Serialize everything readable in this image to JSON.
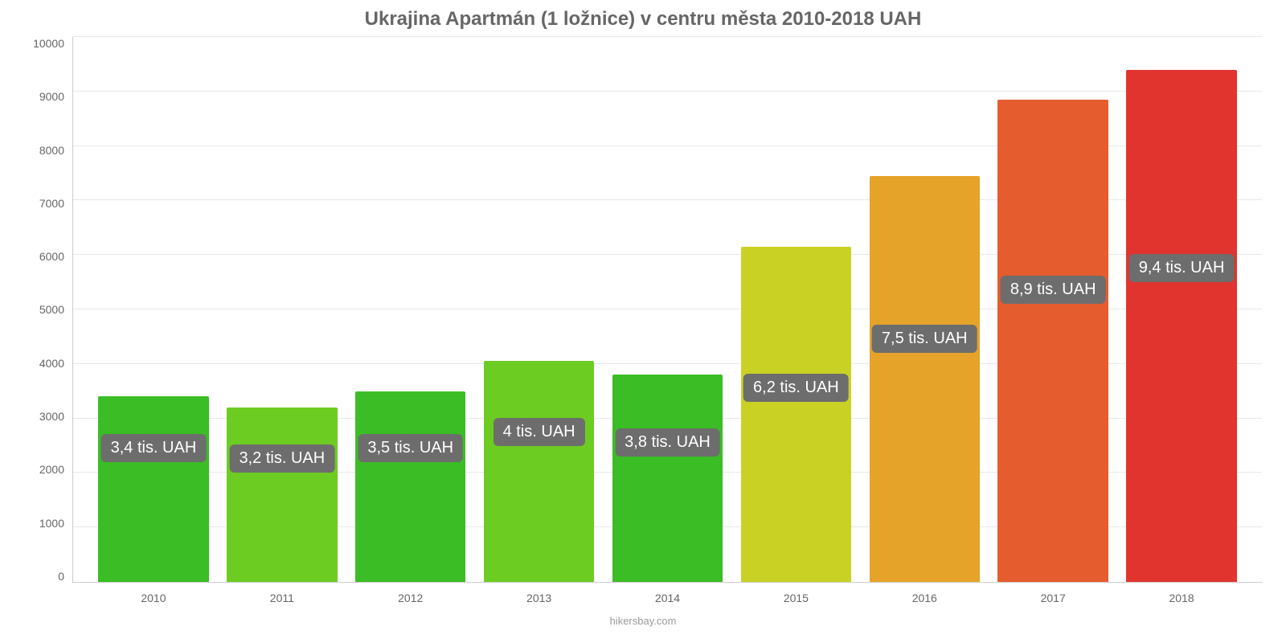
{
  "chart": {
    "type": "bar",
    "title": "Ukrajina Apartmán (1 ložnice) v centru města 2010-2018 UAH",
    "title_fontsize": 24,
    "title_color": "#666666",
    "background_color": "#ffffff",
    "grid_color": "#e8e8e8",
    "axis_color": "#cccccc",
    "tick_color": "#666666",
    "tick_fontsize": 14,
    "ylim": [
      0,
      10000
    ],
    "ytick_step": 1000,
    "yticks": [
      "10000",
      "9000",
      "8000",
      "7000",
      "6000",
      "5000",
      "4000",
      "3000",
      "2000",
      "1000",
      "0"
    ],
    "categories": [
      "2010",
      "2011",
      "2012",
      "2013",
      "2014",
      "2015",
      "2016",
      "2017",
      "2018"
    ],
    "values": [
      3400,
      3200,
      3500,
      4050,
      3800,
      6150,
      7450,
      8850,
      9400
    ],
    "bar_colors": [
      "#3bbd25",
      "#6dcc22",
      "#3bbd25",
      "#6dcc22",
      "#3bbd25",
      "#c9d125",
      "#e5a32a",
      "#e55c2e",
      "#e1342e"
    ],
    "bar_width": 0.86,
    "value_labels": [
      "3,4 tis. UAH",
      "3,2 tis. UAH",
      "3,5 tis. UAH",
      "4 tis. UAH",
      "3,8 tis. UAH",
      "6,2 tis. UAH",
      "7,5 tis. UAH",
      "8,9 tis. UAH",
      "9,4 tis. UAH"
    ],
    "label_bg": "#6d6d6d",
    "label_color": "#ffffff",
    "label_fontsize": 20,
    "label_y_values": [
      2200,
      2000,
      2200,
      2500,
      2300,
      3300,
      4200,
      5100,
      5500
    ],
    "footer": "hikersbay.com",
    "footer_color": "#999999"
  }
}
